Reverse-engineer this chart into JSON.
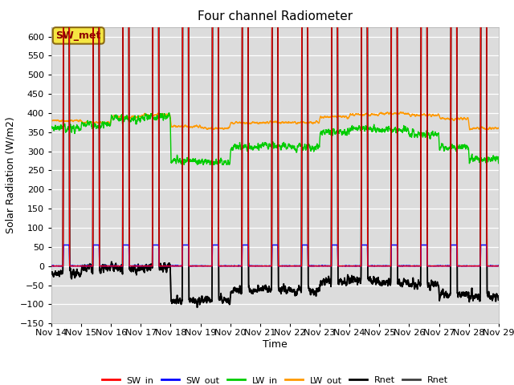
{
  "title": "Four channel Radiometer",
  "xlabel": "Time",
  "ylabel": "Solar Radiation (W/m2)",
  "ylim": [
    -150,
    625
  ],
  "yticks": [
    -150,
    -100,
    -50,
    0,
    50,
    100,
    150,
    200,
    250,
    300,
    350,
    400,
    450,
    500,
    550,
    600
  ],
  "plot_bg_color": "#dcdcdc",
  "annotation_text": "SW_met",
  "annotation_bg": "#f5e642",
  "annotation_border": "#8b6914",
  "legend_entries": [
    "SW_in",
    "SW_out",
    "LW_in",
    "LW_out",
    "Rnet",
    "Rnet"
  ],
  "legend_colors": [
    "#ff0000",
    "#0000ff",
    "#00cc00",
    "#ff9900",
    "#000000",
    "#404040"
  ],
  "line_widths": [
    1.0,
    1.0,
    1.0,
    1.0,
    1.2,
    1.2
  ],
  "n_days": 15,
  "start_day": 14,
  "points_per_day": 288
}
